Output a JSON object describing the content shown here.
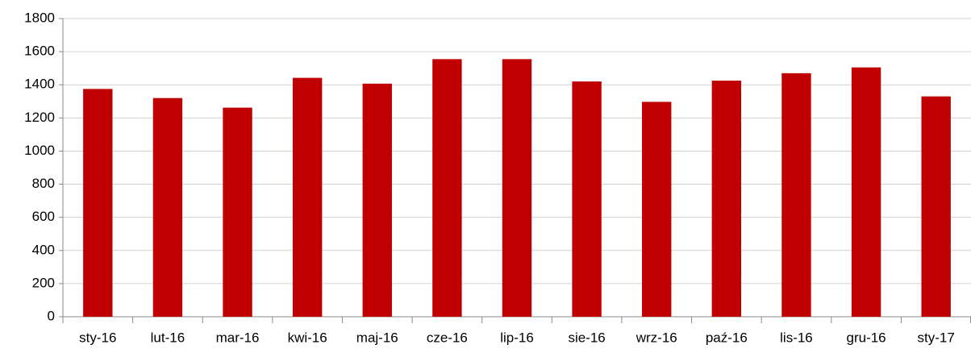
{
  "chart_data": {
    "type": "bar",
    "categories": [
      "sty-16",
      "lut-16",
      "mar-16",
      "kwi-16",
      "maj-16",
      "cze-16",
      "lip-16",
      "sie-16",
      "wrz-16",
      "paź-16",
      "lis-16",
      "gru-16",
      "sty-17"
    ],
    "values": [
      1375,
      1320,
      1262,
      1442,
      1407,
      1555,
      1555,
      1420,
      1297,
      1425,
      1470,
      1505,
      1330
    ],
    "color": "#c00000",
    "ylim": [
      0,
      1800
    ],
    "yticks": [
      0,
      200,
      400,
      600,
      800,
      1000,
      1200,
      1400,
      1600,
      1800
    ],
    "grid": true
  }
}
